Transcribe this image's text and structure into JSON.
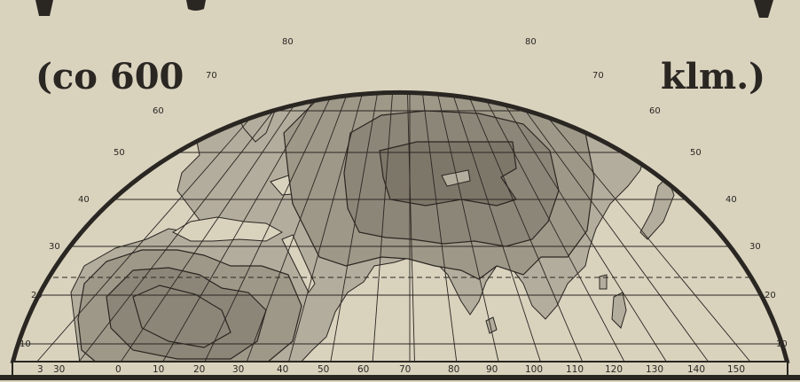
{
  "map": {
    "caption_left": "(co 600",
    "caption_right": "klm.)",
    "colors": {
      "paper": "#d9d3be",
      "ocean": "#d9d3be",
      "land": "#b3ad9d",
      "zone_mid": "#9e9888",
      "zone_dark": "#8c8678",
      "zone_darkest": "#7d7769",
      "ink": "#2a2622"
    },
    "latitude_labels_left": [
      "80",
      "70",
      "60",
      "50",
      "40",
      "30",
      "20",
      "10"
    ],
    "latitude_labels_right": [
      "80",
      "70",
      "60",
      "50",
      "40",
      "30",
      "20",
      "10"
    ],
    "longitude_labels": [
      "3",
      "30",
      "0",
      "10",
      "20",
      "30",
      "40",
      "50",
      "60",
      "70",
      "80",
      "90",
      "100",
      "110",
      "120",
      "130",
      "140",
      "150"
    ]
  }
}
